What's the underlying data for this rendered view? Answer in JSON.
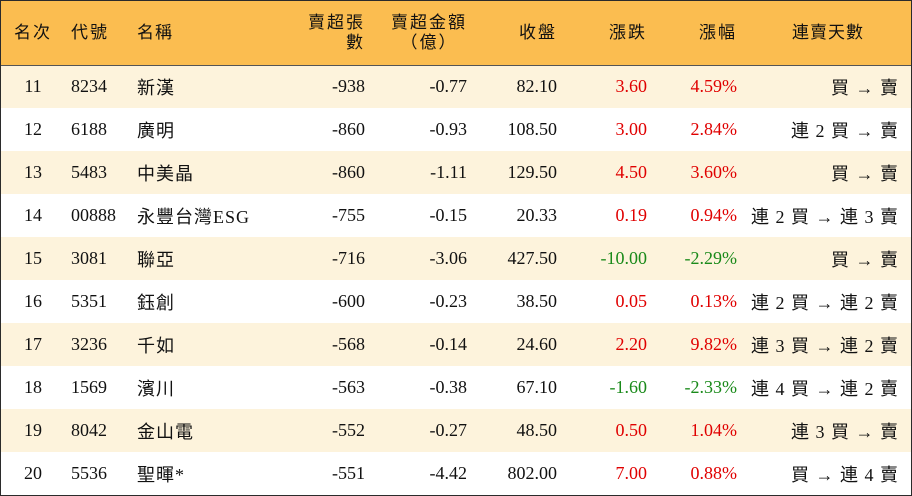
{
  "headers": {
    "rank": "名次",
    "code": "代號",
    "name": "名稱",
    "net_sell_qty": "賣超張數",
    "net_sell_amount_line1": "賣超金額",
    "net_sell_amount_line2": "（億）",
    "close": "收盤",
    "change": "漲跌",
    "change_pct": "漲幅",
    "consecutive_days": "連賣天數"
  },
  "colors": {
    "header_bg": "#fbbd50",
    "row_alt_bg": "#fdf3dc",
    "up": "#e00000",
    "down": "#1a8a1a"
  },
  "rows": [
    {
      "rank": "11",
      "code": "8234",
      "name": "新漢",
      "qty": "-938",
      "amount": "-0.77",
      "close": "82.10",
      "change": "3.60",
      "pct": "4.59%",
      "dir": "up",
      "days": "買 → 賣"
    },
    {
      "rank": "12",
      "code": "6188",
      "name": "廣明",
      "qty": "-860",
      "amount": "-0.93",
      "close": "108.50",
      "change": "3.00",
      "pct": "2.84%",
      "dir": "up",
      "days": "連 2 買 → 賣"
    },
    {
      "rank": "13",
      "code": "5483",
      "name": "中美晶",
      "qty": "-860",
      "amount": "-1.11",
      "close": "129.50",
      "change": "4.50",
      "pct": "3.60%",
      "dir": "up",
      "days": "買 → 賣"
    },
    {
      "rank": "14",
      "code": "00888",
      "name": "永豐台灣ESG",
      "qty": "-755",
      "amount": "-0.15",
      "close": "20.33",
      "change": "0.19",
      "pct": "0.94%",
      "dir": "up",
      "days": "連 2 買 → 連 3 賣"
    },
    {
      "rank": "15",
      "code": "3081",
      "name": "聯亞",
      "qty": "-716",
      "amount": "-3.06",
      "close": "427.50",
      "change": "-10.00",
      "pct": "-2.29%",
      "dir": "down",
      "days": "買 → 賣"
    },
    {
      "rank": "16",
      "code": "5351",
      "name": "鈺創",
      "qty": "-600",
      "amount": "-0.23",
      "close": "38.50",
      "change": "0.05",
      "pct": "0.13%",
      "dir": "up",
      "days": "連 2 買 → 連 2 賣"
    },
    {
      "rank": "17",
      "code": "3236",
      "name": "千如",
      "qty": "-568",
      "amount": "-0.14",
      "close": "24.60",
      "change": "2.20",
      "pct": "9.82%",
      "dir": "up",
      "days": "連 3 買 → 連 2 賣"
    },
    {
      "rank": "18",
      "code": "1569",
      "name": "濱川",
      "qty": "-563",
      "amount": "-0.38",
      "close": "67.10",
      "change": "-1.60",
      "pct": "-2.33%",
      "dir": "down",
      "days": "連 4 買 → 連 2 賣"
    },
    {
      "rank": "19",
      "code": "8042",
      "name": "金山電",
      "qty": "-552",
      "amount": "-0.27",
      "close": "48.50",
      "change": "0.50",
      "pct": "1.04%",
      "dir": "up",
      "days": "連 3 買 → 賣"
    },
    {
      "rank": "20",
      "code": "5536",
      "name": "聖暉*",
      "qty": "-551",
      "amount": "-4.42",
      "close": "802.00",
      "change": "7.00",
      "pct": "0.88%",
      "dir": "up",
      "days": "買 → 連 4 賣"
    }
  ]
}
